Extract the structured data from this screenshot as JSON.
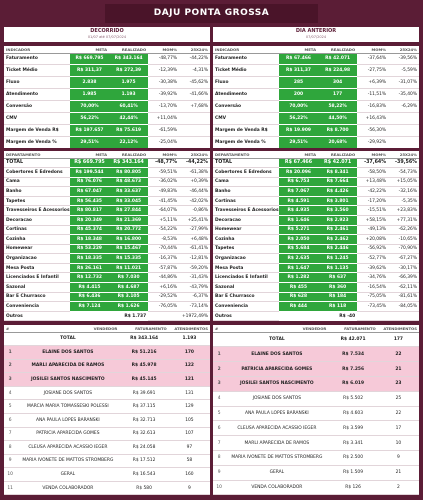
{
  "header": {
    "title": "DAJU PONTA GROSSA"
  },
  "panels": [
    {
      "label": "DECORRIDO",
      "period": "01/07 até 07/07/2024",
      "indicators": {
        "columns": [
          "INDICADOR",
          "META",
          "REALIZADO",
          "MOM%",
          "25X24%"
        ],
        "rows": [
          [
            "Faturamento",
            "R$ 669.795",
            "R$ 343.164",
            "-48,77%",
            "-44,22%"
          ],
          [
            "Ticket Médio",
            "R$ 311,37",
            "R$ 272,39",
            "-12,39%",
            "-4,31%"
          ],
          [
            "Fluxo",
            "2.838",
            "1.975",
            "-30,38%",
            "-45,62%"
          ],
          [
            "Atendimento",
            "1.985",
            "1.193",
            "-39,92%",
            "-41,66%"
          ],
          [
            "Conversão",
            "70,00%",
            "60,41%",
            "-13,70%",
            "+7,68%"
          ],
          [
            "CMV",
            "56,22%",
            "42,44%",
            "+11,04%",
            null
          ],
          [
            "Margem de Venda R$",
            "R$ 197.657",
            "R$ 75.619",
            "-61,59%",
            null
          ],
          [
            "Margem de Venda %",
            "29,51%",
            "22,12%",
            "-25,04%",
            null
          ]
        ]
      },
      "departments": {
        "columns": [
          "DEPARTAMENTO",
          "META",
          "REALIZADO",
          "MOM%",
          "25X24%"
        ],
        "rows": [
          [
            "TOTAL",
            "R$ 669.795",
            "R$ 343.164",
            "-48,77%",
            "-44,22%"
          ],
          [
            "Cobertores E Edredons",
            "R$ 199.544",
            "R$ 80.805",
            "-59,51%",
            "-61,38%"
          ],
          [
            "Cama",
            "R$ 76.076",
            "R$ 48.673",
            "-36,02%",
            "+0,39%"
          ],
          [
            "Banho",
            "R$ 67.047",
            "R$ 33.637",
            "-49,83%",
            "-46,44%"
          ],
          [
            "Tapetes",
            "R$ 56.435",
            "R$ 33.045",
            "-41,45%",
            "-42,02%"
          ],
          [
            "Travesseiros E Acessorios",
            "R$ 80.817",
            "R$ 27.844",
            "-64,07%",
            "-0,86%"
          ],
          [
            "Decoracao",
            "R$ 20.349",
            "R$ 21.369",
            "+5,11%",
            "+25,41%"
          ],
          [
            "Cortinas",
            "R$ 45.374",
            "R$ 20.772",
            "-54,22%",
            "-27,99%"
          ],
          [
            "Cozinha",
            "R$ 18.348",
            "R$ 16.800",
            "-8,53%",
            "+6,48%"
          ],
          [
            "Homewear",
            "R$ 53.229",
            "R$ 15.467",
            "-70,44%",
            "-61,41%"
          ],
          [
            "Organizacao",
            "R$ 18.335",
            "R$ 15.335",
            "-16,37%",
            "-12,81%"
          ],
          [
            "Mesa Posta",
            "R$ 26.161",
            "R$ 11.021",
            "-57,87%",
            "-59,20%"
          ],
          [
            "Licenciados E Infantil",
            "R$ 12.732",
            "R$ 7.030",
            "-44,86%",
            "-31,43%"
          ],
          [
            "Sazonal",
            "R$ 4.415",
            "R$ 4.687",
            "+6,16%",
            "-43,79%"
          ],
          [
            "Bar E Churrasco",
            "R$ 6.436",
            "R$ 3.105",
            "-29,52%",
            "-6,37%"
          ],
          [
            "Conveniencia",
            "R$ 7.124",
            "R$ 1.626",
            "-76,05%",
            "-73,14%"
          ],
          [
            "Outros",
            null,
            "R$ 1.737",
            null,
            "+1972,49%"
          ]
        ]
      },
      "sellers": {
        "columns": [
          "#",
          "VENDEDOR",
          "FATURAMENTO",
          "ATENDIMENTOS"
        ],
        "rows": [
          [
            null,
            "TOTAL",
            "R$ 343.164",
            "1.193"
          ],
          [
            1,
            "ELAINE DOS SANTOS",
            "R$ 51.216",
            170
          ],
          [
            2,
            "MARLI APARECIDA DE RAMOS",
            "R$ 45.978",
            122
          ],
          [
            3,
            "JOSILEI SANTOS NASCIMENTO",
            "R$ 45.145",
            121
          ],
          [
            4,
            "JOSIANE DOS SANTOS",
            "R$ 39.691",
            131
          ],
          [
            5,
            "MARCIA MARIA TOMASSESKI POLESSI",
            "R$ 37.115",
            129
          ],
          [
            6,
            "ANA PAULA LOPES BARANSKI",
            "R$ 32.713",
            105
          ],
          [
            7,
            "PATRICIA APARECIDA GOMES",
            "R$ 32.613",
            107
          ],
          [
            8,
            "CLEUSA APARECIDA ACASSIO IEGER",
            "R$ 24.058",
            97
          ],
          [
            9,
            "MARIA IVONETE DE MATTOS STROMBERG",
            "R$ 17.512",
            58
          ],
          [
            10,
            "GERAL",
            "R$ 16.543",
            160
          ],
          [
            11,
            "VENDA COLABORADOR",
            "R$ 580",
            9
          ]
        ]
      }
    },
    {
      "label": "DIA ANTERIOR",
      "period": "07/07/2024",
      "indicators": {
        "columns": [
          "INDICADOR",
          "META",
          "REALIZADO",
          "MOM%",
          "25X24%"
        ],
        "rows": [
          [
            "Faturamento",
            "R$ 67.466",
            "R$ 42.071",
            "-37,64%",
            "-39,56%"
          ],
          [
            "Ticket Médio",
            "R$ 311,37",
            "R$ 224,98",
            "-27,75%",
            "-5,59%"
          ],
          [
            "Fluxo",
            "285",
            "304",
            "+6,39%",
            "-31,07%"
          ],
          [
            "Atendimento",
            "200",
            "177",
            "-11,51%",
            "-35,40%"
          ],
          [
            "Conversão",
            "70,00%",
            "58,22%",
            "-16,83%",
            "-6,29%"
          ],
          [
            "CMV",
            "56,22%",
            "44,50%",
            "+16,43%",
            null
          ],
          [
            "Margem de Venda R$",
            "R$ 19.909",
            "R$ 8.700",
            "-56,30%",
            null
          ],
          [
            "Margem de Venda %",
            "29,51%",
            "20,68%",
            "-29,92%",
            null
          ]
        ]
      },
      "departments": {
        "columns": [
          "DEPARTAMENTO",
          "META",
          "REALIZADO",
          "MOM%",
          "25X24%"
        ],
        "rows": [
          [
            "TOTAL",
            "R$ 67.466",
            "R$ 42.071",
            "-37,64%",
            "-39,56%"
          ],
          [
            "Cobertores E Edredons",
            "R$ 20.096",
            "R$ 8.341",
            "-58,50%",
            "-54,73%"
          ],
          [
            "Cama",
            "R$ 6.753",
            "R$ 7.664",
            "+13,48%",
            "+15,05%"
          ],
          [
            "Banho",
            "R$ 7.067",
            "R$ 4.426",
            "-42,22%",
            "-32,16%"
          ],
          [
            "Cortinas",
            "R$ 4.591",
            "R$ 3.801",
            "-17,20%",
            "-5,35%"
          ],
          [
            "Travesseiros E Acessorios",
            "R$ 4.935",
            "R$ 3.560",
            "-15,51%",
            "+23,83%"
          ],
          [
            "Decoracao",
            "R$ 1.646",
            "R$ 2.923",
            "+58,15%",
            "+77,31%"
          ],
          [
            "Homewear",
            "R$ 5.271",
            "R$ 2.461",
            "-49,13%",
            "-62,26%"
          ],
          [
            "Cozinha",
            "R$ 2.050",
            "R$ 2.462",
            "+20,08%",
            "-10,65%"
          ],
          [
            "Tapetes",
            "R$ 5.684",
            "R$ 2.446",
            "-56,92%",
            "-70,90%"
          ],
          [
            "Organizacao",
            "R$ 2.635",
            "R$ 1.245",
            "-52,77%",
            "-67,27%"
          ],
          [
            "Mesa Posta",
            "R$ 1.647",
            "R$ 1.135",
            "-39,62%",
            "-30,17%"
          ],
          [
            "Licenciados E Infantil",
            "R$ 1.282",
            "R$ 637",
            "-34,76%",
            "-66,39%"
          ],
          [
            "Sazonal",
            "R$ 455",
            "R$ 360",
            "-16,54%",
            "-62,11%"
          ],
          [
            "Bar E Churrasco",
            "R$ 628",
            "R$ 184",
            "-75,05%",
            "-81,61%"
          ],
          [
            "Conveniencia",
            "R$ 444",
            "R$ 118",
            "-73,45%",
            "-84,05%"
          ],
          [
            "Outros",
            null,
            "R$ -40",
            null,
            null
          ]
        ]
      },
      "sellers": {
        "columns": [
          "#",
          "VENDEDOR",
          "FATURAMENTO",
          "ATENDIMENTOS"
        ],
        "rows": [
          [
            null,
            "TOTAL",
            "R$ 42.071",
            177
          ],
          [
            1,
            "ELAINE DOS SANTOS",
            "R$ 7.534",
            22
          ],
          [
            2,
            "PATRICIA APARECIDA GOMES",
            "R$ 7.256",
            21
          ],
          [
            3,
            "JOSILEI SANTOS NASCIMENTO",
            "R$ 6.019",
            23
          ],
          [
            4,
            "JOSIANE DOS SANTOS",
            "R$ 5.502",
            25
          ],
          [
            5,
            "ANA PAULA LOPES BARANSKI",
            "R$ 4.603",
            22
          ],
          [
            6,
            "CLEUSA APARECIDA ACASSIO IEGER",
            "R$ 3.599",
            17
          ],
          [
            7,
            "MARLI APARECIDA DE RAMOS",
            "R$ 3.341",
            10
          ],
          [
            8,
            "MARIA IVONETE DE MATTOS STROMBERG",
            "R$ 2.500",
            9
          ],
          [
            9,
            "GERAL",
            "R$ 1.509",
            21
          ],
          [
            10,
            "VENDA COLABORADOR",
            "R$ 126",
            2
          ]
        ]
      }
    }
  ]
}
